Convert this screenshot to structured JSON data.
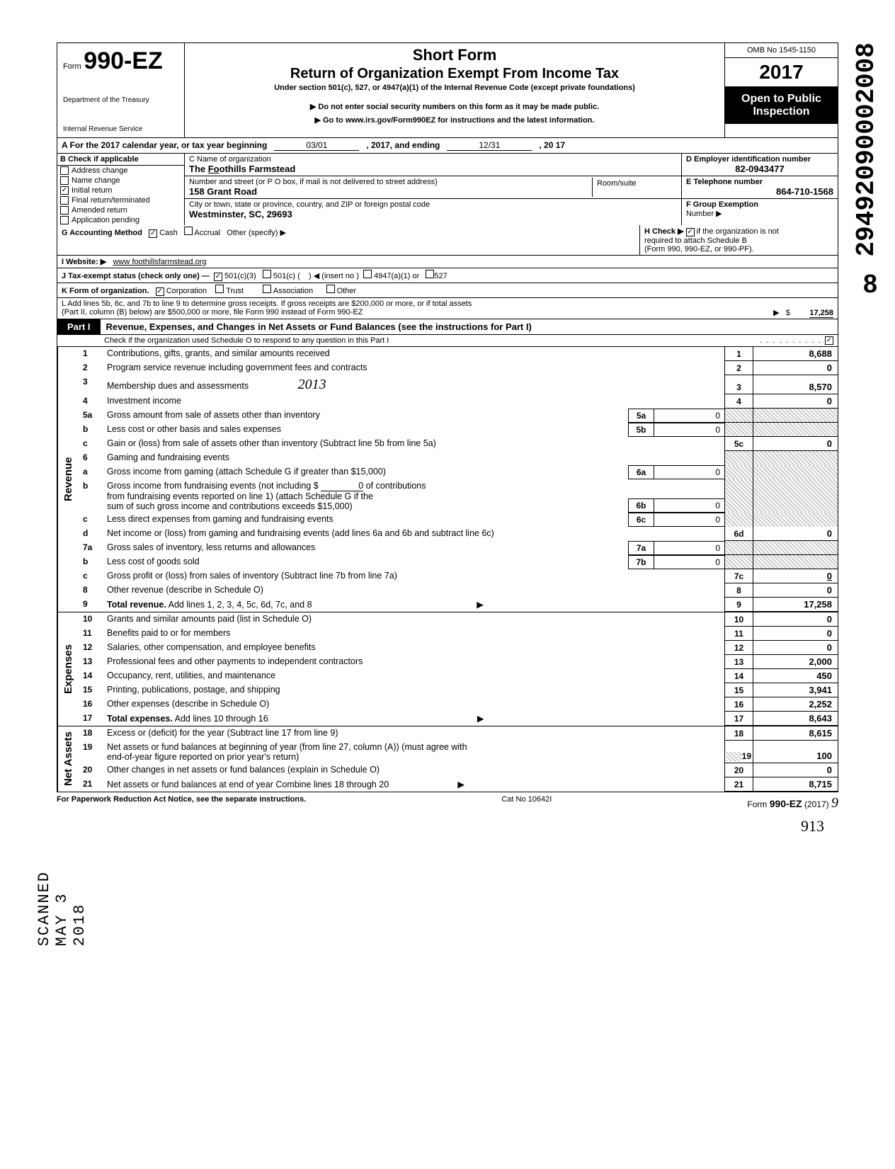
{
  "vertical_code": "29492090002008",
  "vertical_eight": "8",
  "stamp": "SCANNED MAY 3 2018",
  "header": {
    "form_label": "Form",
    "form_num": "990-EZ",
    "dept": "Department of the Treasury",
    "irs": "Internal Revenue Service",
    "short_form": "Short Form",
    "title": "Return of Organization Exempt From Income Tax",
    "subtitle": "Under section 501(c), 527, or 4947(a)(1) of the Internal Revenue Code (except private foundations)",
    "warn": "Do not enter social security numbers on this form as it may be made public.",
    "goto": "Go to www.irs.gov/Form990EZ for instructions and the latest information.",
    "omb": "OMB No 1545-1150",
    "year": "2017",
    "open1": "Open to Public",
    "open2": "Inspection"
  },
  "line_a": {
    "label": "A  For the 2017 calendar year, or tax year beginning",
    "begin": "03/01",
    "mid": ", 2017, and ending",
    "end_month": "12/31",
    "end_year": ", 20   17"
  },
  "col_b": {
    "header": "B  Check if applicable",
    "items": [
      {
        "label": "Address change",
        "checked": false
      },
      {
        "label": "Name change",
        "checked": false
      },
      {
        "label": "Initial return",
        "checked": true
      },
      {
        "label": "Final return/terminated",
        "checked": false
      },
      {
        "label": "Amended return",
        "checked": false
      },
      {
        "label": "Application pending",
        "checked": false
      }
    ]
  },
  "col_c": {
    "name_label": "C  Name of organization",
    "name": "The Foothills Farmstead",
    "street_label": "Number and street (or P O  box, if mail is not delivered to street address)",
    "room_label": "Room/suite",
    "street": "158 Grant Road",
    "city_label": "City or town, state or province, country, and ZIP or foreign postal code",
    "city": "Westminster, SC,  29693"
  },
  "col_d": {
    "ein_label": "D Employer identification number",
    "ein": "82-0943477",
    "phone_label": "E  Telephone number",
    "phone": "864-710-1568",
    "group_label": "F  Group Exemption",
    "group_num": "Number ▶"
  },
  "row_g": {
    "label": "G  Accounting Method",
    "cash": "Cash",
    "accrual": "Accrual",
    "other": "Other (specify) ▶"
  },
  "row_h": {
    "label": "H  Check ▶",
    "text": "if the organization is not",
    "text2": "required to attach Schedule B",
    "text3": "(Form 990, 990-EZ, or 990-PF)."
  },
  "row_i": {
    "label": "I   Website: ▶",
    "val": "www foothillsfarmstead.org"
  },
  "row_j": {
    "label": "J  Tax-exempt status (check only one) —",
    "opt1": "501(c)(3)",
    "opt2": "501(c) (",
    "opt2b": ") ◀ (insert no )",
    "opt3": "4947(a)(1) or",
    "opt4": "527"
  },
  "row_k": {
    "label": "K  Form of organization.",
    "opt1": "Corporation",
    "opt2": "Trust",
    "opt3": "Association",
    "opt4": "Other"
  },
  "row_l": {
    "text1": "L  Add lines 5b, 6c, and 7b to line 9 to determine gross receipts. If gross receipts are $200,000 or more, or if total assets",
    "text2": "(Part II, column (B) below) are $500,000 or more, file Form 990 instead of Form 990-EZ",
    "amount": "17,258"
  },
  "part1": {
    "label": "Part I",
    "title": "Revenue, Expenses, and Changes in Net Assets or Fund Balances (see the instructions for Part I)",
    "check_line": "Check if the organization used Schedule O to respond to any question in this Part I"
  },
  "hand_2013": "2013",
  "revenue_lines": {
    "1": {
      "desc": "Contributions, gifts, grants, and similar amounts received",
      "num": "1",
      "val": "8,688"
    },
    "2": {
      "desc": "Program service revenue including government fees and contracts",
      "num": "2",
      "val": "0"
    },
    "3": {
      "desc": "Membership dues and assessments",
      "num": "3",
      "val": "8,570"
    },
    "4": {
      "desc": "Investment income",
      "num": "4",
      "val": "0"
    },
    "5a": {
      "desc": "Gross amount from sale of assets other than inventory",
      "sub": "5a",
      "subval": "0"
    },
    "5b": {
      "desc": "Less  cost or other basis and sales expenses",
      "sub": "5b",
      "subval": "0"
    },
    "5c": {
      "desc": "Gain or (loss) from sale of assets other than inventory (Subtract line 5b from line 5a)",
      "num": "5c",
      "val": "0"
    },
    "6": {
      "desc": "Gaming and fundraising events"
    },
    "6a": {
      "desc": "Gross income from gaming (attach Schedule G if greater than $15,000)",
      "sub": "6a",
      "subval": "0"
    },
    "6b": {
      "desc1": "Gross income from fundraising events (not including  $",
      "desc1b": "of contributions",
      "desc2": "from fundraising events reported on line 1) (attach Schedule G if the",
      "desc3": "sum of such gross income and contributions exceeds $15,000)",
      "subcontrib": "0",
      "sub": "6b",
      "subval": "0"
    },
    "6c": {
      "desc": "Less  direct expenses from gaming and fundraising events",
      "sub": "6c",
      "subval": "0"
    },
    "6d": {
      "desc": "Net income or (loss) from gaming and fundraising events (add lines 6a and 6b and subtract line 6c)",
      "num": "6d",
      "val": "0"
    },
    "7a": {
      "desc": "Gross sales of inventory, less returns and allowances",
      "sub": "7a",
      "subval": "0"
    },
    "7b": {
      "desc": "Less  cost of goods sold",
      "sub": "7b",
      "subval": "0"
    },
    "7c": {
      "desc": "Gross profit or (loss) from sales of inventory (Subtract line 7b from line 7a)",
      "num": "7c",
      "val": "0"
    },
    "8": {
      "desc": "Other revenue (describe in Schedule O)",
      "num": "8",
      "val": "0"
    },
    "9": {
      "desc": "Total revenue. Add lines 1, 2, 3, 4, 5c, 6d, 7c, and 8",
      "num": "9",
      "val": "17,258"
    }
  },
  "expense_lines": {
    "10": {
      "desc": "Grants and similar amounts paid (list in Schedule O)",
      "num": "10",
      "val": "0"
    },
    "11": {
      "desc": "Benefits paid to or for members",
      "num": "11",
      "val": "0"
    },
    "12": {
      "desc": "Salaries, other compensation, and employee benefits",
      "num": "12",
      "val": "0"
    },
    "13": {
      "desc": "Professional fees and other payments to independent contractors",
      "num": "13",
      "val": "2,000"
    },
    "14": {
      "desc": "Occupancy, rent, utilities, and maintenance",
      "num": "14",
      "val": "450"
    },
    "15": {
      "desc": "Printing, publications, postage, and shipping",
      "num": "15",
      "val": "3,941"
    },
    "16": {
      "desc": "Other expenses (describe in Schedule O)",
      "num": "16",
      "val": "2,252"
    },
    "17": {
      "desc": "Total expenses. Add lines 10 through 16",
      "num": "17",
      "val": "8,643"
    }
  },
  "netassets_lines": {
    "18": {
      "desc": "Excess or (deficit) for the year (Subtract line 17 from line 9)",
      "num": "18",
      "val": "8,615"
    },
    "19": {
      "desc1": "Net assets or fund balances at beginning of year (from line 27, column (A)) (must agree with",
      "desc2": "end-of-year figure reported on prior year's return)",
      "num": "19",
      "val": "100"
    },
    "20": {
      "desc": "Other changes in net assets or fund balances (explain in Schedule O)",
      "num": "20",
      "val": "0"
    },
    "21": {
      "desc": "Net assets or fund balances at end of year  Combine lines 18 through 20",
      "num": "21",
      "val": "8,715"
    }
  },
  "footer": {
    "left": "For Paperwork Reduction Act Notice, see the separate instructions.",
    "mid": "Cat No 10642I",
    "right_form": "990-EZ",
    "right_year": "(2017)",
    "hand_q": "9",
    "hand_913": "913"
  }
}
